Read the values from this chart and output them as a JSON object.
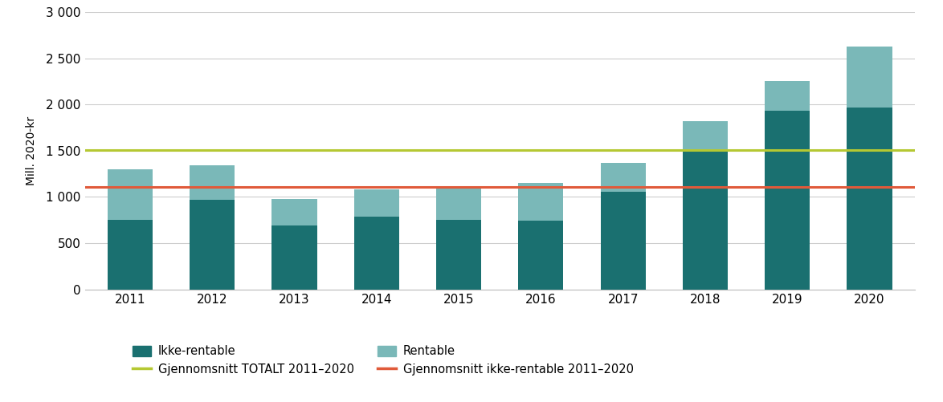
{
  "years": [
    2011,
    2012,
    2013,
    2014,
    2015,
    2016,
    2017,
    2018,
    2019,
    2020
  ],
  "ikke_rentable": [
    750,
    970,
    690,
    790,
    750,
    740,
    1060,
    1510,
    1930,
    1970
  ],
  "rentable": [
    550,
    370,
    290,
    290,
    340,
    415,
    310,
    310,
    320,
    660
  ],
  "color_ikke_rentable": "#1a7070",
  "color_rentable": "#7ab8b8",
  "avg_total": 1510,
  "avg_ikke_rentable": 1110,
  "color_avg_total": "#b5c832",
  "color_avg_ikke_rentable": "#e05a3a",
  "ylabel": "Mill. 2020-kr",
  "ylim": [
    0,
    3000
  ],
  "ytick_values": [
    0,
    500,
    1000,
    1500,
    2000,
    2500,
    3000
  ],
  "ytick_labels": [
    "0",
    "500",
    "1 000",
    "1 500",
    "2 000",
    "2 500",
    "3 000"
  ],
  "legend_ikke_rentable": "Ikke-rentable",
  "legend_rentable": "Rentable",
  "legend_avg_total": "Gjennomsnitt TOTALT 2011–2020",
  "legend_avg_ikke_rentable": "Gjennomsnitt ikke-rentable 2011–2020",
  "background_color": "#ffffff",
  "grid_color": "#cccccc",
  "bar_width": 0.55
}
